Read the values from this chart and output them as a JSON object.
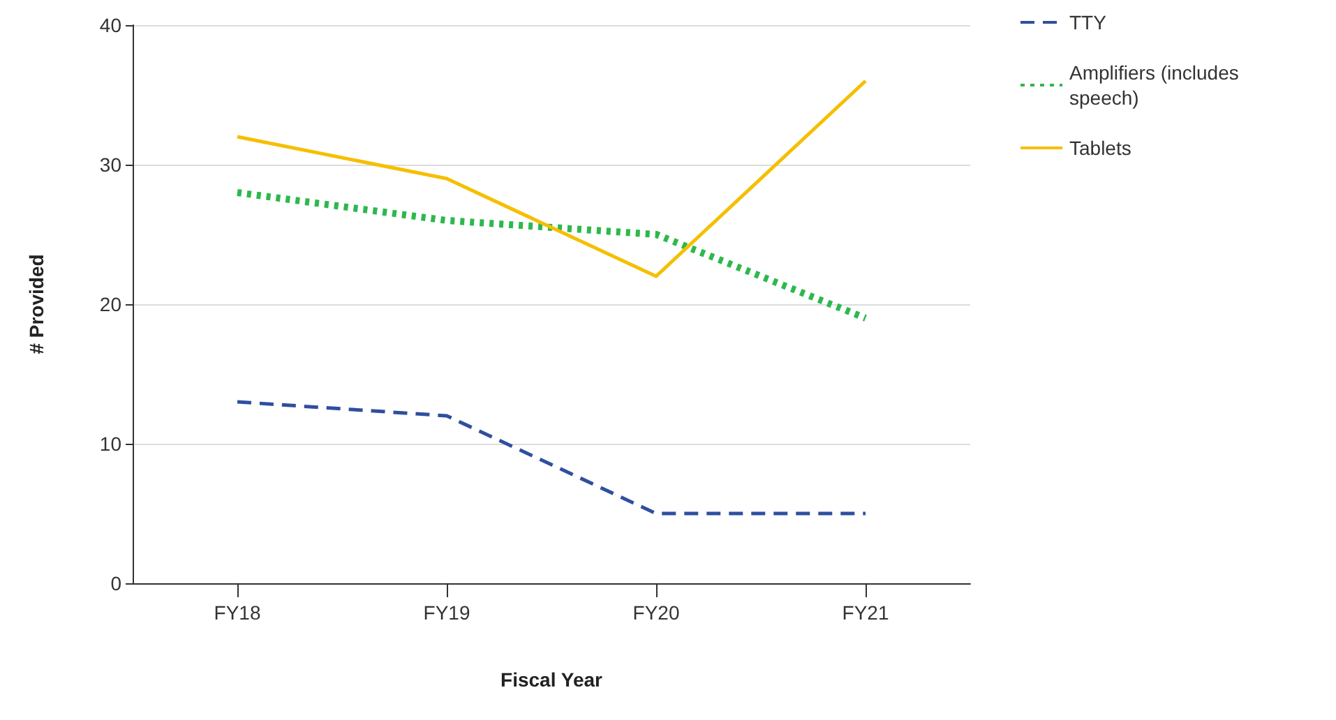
{
  "chart_data": {
    "type": "line",
    "xlabel": "Fiscal Year",
    "ylabel": "# Provided",
    "categories": [
      "FY18",
      "FY19",
      "FY20",
      "FY21"
    ],
    "series": [
      {
        "name": "TTY",
        "color": "#2f4f9e",
        "line_style": "dashed",
        "values": [
          13,
          12,
          5,
          5
        ]
      },
      {
        "name": "Amplifiers (includes speech)",
        "color": "#2db84d",
        "line_style": "dotted",
        "values": [
          28,
          26,
          25,
          19
        ]
      },
      {
        "name": "Tablets",
        "color": "#f5bf00",
        "line_style": "solid",
        "values": [
          32,
          29,
          22,
          36
        ]
      }
    ],
    "ylim": [
      0,
      40
    ],
    "yticks": [
      0,
      10,
      20,
      30,
      40
    ],
    "grid": "y",
    "legend": "top right",
    "marker": "none"
  }
}
